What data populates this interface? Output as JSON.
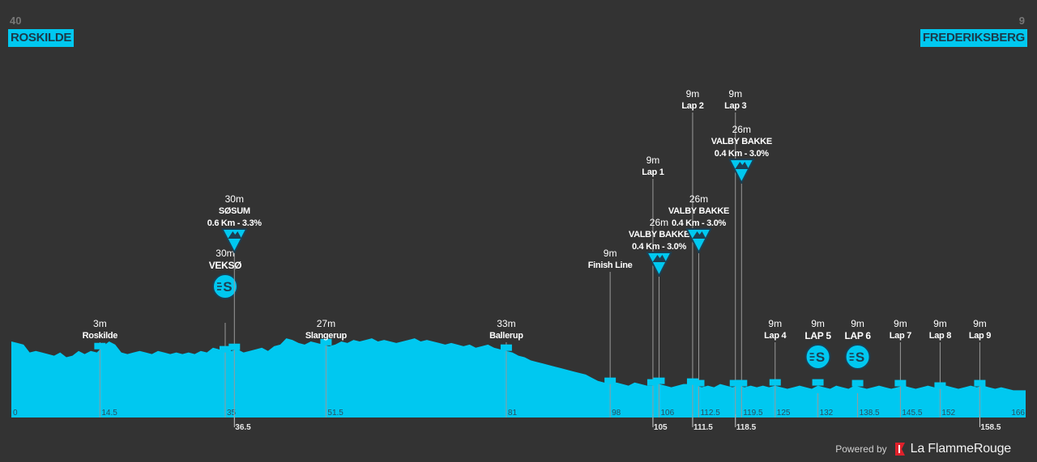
{
  "start": {
    "altitude": "40",
    "name": "ROSKILDE"
  },
  "finish": {
    "altitude": "9",
    "name": "FREDERIKSBERG"
  },
  "footer": {
    "powered": "Powered by",
    "brand": "La FlammeRouge",
    "logo_icon": "flamme-rouge-flag-icon"
  },
  "colors": {
    "background": "#333333",
    "profile": "#00c8f0",
    "line": "#9a9a9a",
    "badge": "#00c8f0"
  },
  "chart_data": {
    "type": "area",
    "xlabel": "",
    "ylabel": "",
    "xlim": [
      0,
      166
    ],
    "grid": false,
    "km_ticks": [
      {
        "km": 0,
        "label": "0",
        "below": false
      },
      {
        "km": 14.5,
        "label": "14.5",
        "below": false
      },
      {
        "km": 35,
        "label": "35",
        "below": false
      },
      {
        "km": 36.5,
        "label": "36.5",
        "below": true
      },
      {
        "km": 51.5,
        "label": "51.5",
        "below": false
      },
      {
        "km": 81,
        "label": "81",
        "below": false
      },
      {
        "km": 98,
        "label": "98",
        "below": false
      },
      {
        "km": 105,
        "label": "105",
        "below": true
      },
      {
        "km": 106,
        "label": "106",
        "below": false
      },
      {
        "km": 111.5,
        "label": "111.5",
        "below": true
      },
      {
        "km": 112.5,
        "label": "112.5",
        "below": false
      },
      {
        "km": 118.5,
        "label": "118.5",
        "below": true
      },
      {
        "km": 119.5,
        "label": "119.5",
        "below": false
      },
      {
        "km": 125,
        "label": "125",
        "below": false
      },
      {
        "km": 132,
        "label": "132",
        "below": false
      },
      {
        "km": 138.5,
        "label": "138.5",
        "below": false
      },
      {
        "km": 145.5,
        "label": "145.5",
        "below": false
      },
      {
        "km": 152,
        "label": "152",
        "below": false
      },
      {
        "km": 158.5,
        "label": "158.5",
        "below": true
      },
      {
        "km": 166,
        "label": "166",
        "below": false
      }
    ],
    "profile": [
      [
        0,
        40
      ],
      [
        1,
        39
      ],
      [
        2,
        38
      ],
      [
        3,
        33
      ],
      [
        4,
        34
      ],
      [
        5,
        33
      ],
      [
        6,
        32
      ],
      [
        7,
        31
      ],
      [
        8,
        33
      ],
      [
        9,
        30
      ],
      [
        10,
        31
      ],
      [
        11,
        34
      ],
      [
        12,
        32
      ],
      [
        13,
        34
      ],
      [
        14,
        33
      ],
      [
        15,
        37
      ],
      [
        16,
        40
      ],
      [
        17,
        38
      ],
      [
        18,
        33
      ],
      [
        19,
        32
      ],
      [
        20,
        33
      ],
      [
        21,
        34
      ],
      [
        22,
        33
      ],
      [
        23,
        32
      ],
      [
        24,
        34
      ],
      [
        25,
        33
      ],
      [
        26,
        32
      ],
      [
        27,
        33
      ],
      [
        28,
        32
      ],
      [
        29,
        33
      ],
      [
        30,
        32
      ],
      [
        31,
        34
      ],
      [
        32,
        33
      ],
      [
        33,
        36
      ],
      [
        34,
        35
      ],
      [
        35,
        33
      ],
      [
        36,
        34
      ],
      [
        37,
        35
      ],
      [
        38,
        33
      ],
      [
        39,
        34
      ],
      [
        40,
        35
      ],
      [
        41,
        36
      ],
      [
        42,
        34
      ],
      [
        43,
        37
      ],
      [
        44,
        38
      ],
      [
        45,
        42
      ],
      [
        46,
        41
      ],
      [
        47,
        39
      ],
      [
        48,
        38
      ],
      [
        49,
        40
      ],
      [
        50,
        39
      ],
      [
        51,
        38
      ],
      [
        52,
        37
      ],
      [
        53,
        38
      ],
      [
        54,
        40
      ],
      [
        55,
        39
      ],
      [
        56,
        41
      ],
      [
        57,
        40
      ],
      [
        58,
        41
      ],
      [
        59,
        42
      ],
      [
        60,
        40
      ],
      [
        61,
        41
      ],
      [
        62,
        40
      ],
      [
        63,
        39
      ],
      [
        64,
        40
      ],
      [
        65,
        41
      ],
      [
        66,
        42
      ],
      [
        67,
        40
      ],
      [
        68,
        41
      ],
      [
        69,
        40
      ],
      [
        70,
        39
      ],
      [
        71,
        38
      ],
      [
        72,
        39
      ],
      [
        73,
        38
      ],
      [
        74,
        37
      ],
      [
        75,
        38
      ],
      [
        76,
        36
      ],
      [
        77,
        37
      ],
      [
        78,
        38
      ],
      [
        79,
        36
      ],
      [
        80,
        35
      ],
      [
        81,
        34
      ],
      [
        82,
        33
      ],
      [
        83,
        31
      ],
      [
        84,
        30
      ],
      [
        85,
        28
      ],
      [
        86,
        27
      ],
      [
        87,
        26
      ],
      [
        88,
        25
      ],
      [
        89,
        24
      ],
      [
        90,
        23
      ],
      [
        91,
        22
      ],
      [
        92,
        21
      ],
      [
        93,
        20
      ],
      [
        94,
        19
      ],
      [
        95,
        17
      ],
      [
        96,
        15
      ],
      [
        97,
        14
      ],
      [
        98,
        13
      ],
      [
        99,
        14
      ],
      [
        100,
        13
      ],
      [
        101,
        12
      ],
      [
        102,
        14
      ],
      [
        103,
        13
      ],
      [
        104,
        12
      ],
      [
        105,
        12
      ],
      [
        106,
        13
      ],
      [
        107,
        12
      ],
      [
        108,
        11
      ],
      [
        109,
        12
      ],
      [
        110,
        13
      ],
      [
        111,
        13
      ],
      [
        112,
        12
      ],
      [
        113,
        11
      ],
      [
        114,
        12
      ],
      [
        115,
        11
      ],
      [
        116,
        13
      ],
      [
        117,
        12
      ],
      [
        118,
        11
      ],
      [
        119,
        12
      ],
      [
        120,
        11
      ],
      [
        121,
        12
      ],
      [
        122,
        11
      ],
      [
        123,
        12
      ],
      [
        124,
        11
      ],
      [
        125,
        12
      ],
      [
        126,
        11
      ],
      [
        127,
        10
      ],
      [
        128,
        11
      ],
      [
        129,
        12
      ],
      [
        130,
        11
      ],
      [
        131,
        10
      ],
      [
        132,
        12
      ],
      [
        133,
        11
      ],
      [
        134,
        10
      ],
      [
        135,
        12
      ],
      [
        136,
        11
      ],
      [
        137,
        10
      ],
      [
        138,
        12
      ],
      [
        139,
        11
      ],
      [
        140,
        10
      ],
      [
        141,
        11
      ],
      [
        142,
        12
      ],
      [
        143,
        11
      ],
      [
        144,
        10
      ],
      [
        145,
        11
      ],
      [
        146,
        12
      ],
      [
        147,
        11
      ],
      [
        148,
        10
      ],
      [
        149,
        11
      ],
      [
        150,
        12
      ],
      [
        151,
        11
      ],
      [
        152,
        10
      ],
      [
        153,
        12
      ],
      [
        154,
        11
      ],
      [
        155,
        10
      ],
      [
        156,
        11
      ],
      [
        157,
        12
      ],
      [
        158,
        11
      ],
      [
        159,
        12
      ],
      [
        160,
        11
      ],
      [
        161,
        10
      ],
      [
        162,
        11
      ],
      [
        163,
        10
      ],
      [
        164,
        9
      ],
      [
        165,
        9
      ],
      [
        166,
        9
      ]
    ],
    "markers": [
      {
        "km": 14.5,
        "alt": "3m",
        "name": "Roskilde",
        "kind": "town",
        "tier": 0
      },
      {
        "km": 35,
        "alt": "30m",
        "name": "VEKSØ",
        "kind": "sprint",
        "tier": 1
      },
      {
        "km": 36.5,
        "alt": "30m",
        "name": "SØSUM",
        "detail": "0.6 Km - 3.3%",
        "kind": "climb",
        "tier": 2
      },
      {
        "km": 51.5,
        "alt": "27m",
        "name": "Slangerup",
        "kind": "town",
        "tier": 0
      },
      {
        "km": 81,
        "alt": "33m",
        "name": "Ballerup",
        "kind": "town",
        "tier": 0
      },
      {
        "km": 98,
        "alt": "9m",
        "name": "Finish Line",
        "kind": "town",
        "tier": 1
      },
      {
        "km": 105,
        "alt": "9m",
        "name": "Lap 1",
        "kind": "town",
        "tier": 3
      },
      {
        "km": 106,
        "alt": "26m",
        "name": "VALBY BAKKE",
        "detail": "0.4 Km - 3.0%",
        "kind": "climb",
        "tier": 1
      },
      {
        "km": 111.5,
        "alt": "9m",
        "name": "Lap 2",
        "kind": "town",
        "tier": 4
      },
      {
        "km": 112.5,
        "alt": "26m",
        "name": "VALBY BAKKE",
        "detail": "0.4 Km - 3.0%",
        "kind": "climb",
        "tier": 2
      },
      {
        "km": 118.5,
        "alt": "9m",
        "name": "Lap 3",
        "kind": "town",
        "tier": 4
      },
      {
        "km": 119.5,
        "alt": "26m",
        "name": "VALBY BAKKE",
        "detail": "0.4 Km - 3.0%",
        "kind": "climb",
        "tier": 3
      },
      {
        "km": 125,
        "alt": "9m",
        "name": "Lap 4",
        "kind": "town",
        "tier": 0
      },
      {
        "km": 132,
        "alt": "9m",
        "name": "LAP 5",
        "kind": "sprint",
        "tier": 0
      },
      {
        "km": 138.5,
        "alt": "9m",
        "name": "LAP 6",
        "kind": "sprint",
        "tier": 0
      },
      {
        "km": 145.5,
        "alt": "9m",
        "name": "Lap 7",
        "kind": "town",
        "tier": 0
      },
      {
        "km": 152,
        "alt": "9m",
        "name": "Lap 8",
        "kind": "town",
        "tier": 0
      },
      {
        "km": 158.5,
        "alt": "9m",
        "name": "Lap 9",
        "kind": "town",
        "tier": 0
      }
    ]
  }
}
